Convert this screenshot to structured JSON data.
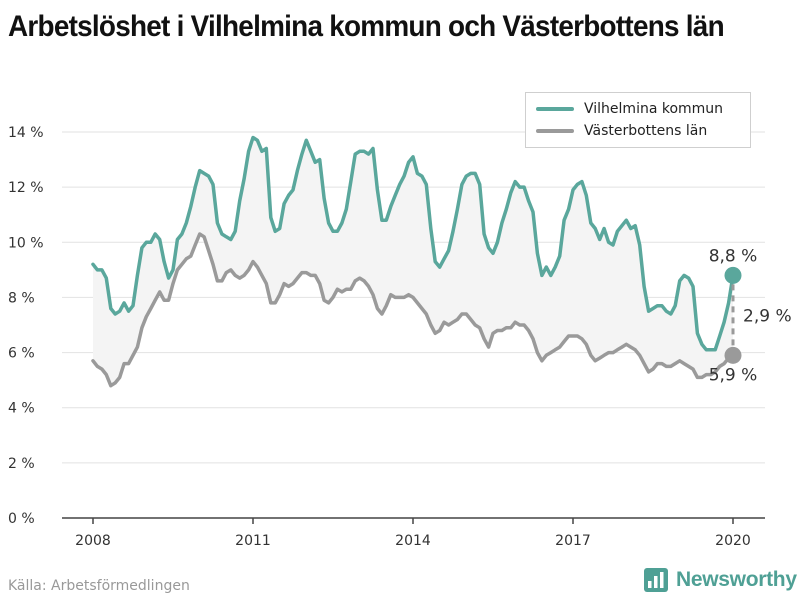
{
  "title": "Arbetslöshet i Vilhelmina kommun och Västerbottens län",
  "source": "Källa: Arbetsförmedlingen",
  "brand": {
    "name": "Newsworthy",
    "icon": "bar-chart-logo-icon",
    "color": "#4fa095"
  },
  "legend": {
    "placement": "top-right",
    "items": [
      {
        "label": "Vilhelmina kommun",
        "color": "#5aa79c"
      },
      {
        "label": "Västerbottens län",
        "color": "#9a9a9a"
      }
    ]
  },
  "annotations": {
    "end_value_vilhelmina": "8,8 %",
    "end_value_vasterbotten": "5,9 %",
    "difference": "2,9 %"
  },
  "chart_data": {
    "type": "line",
    "title": "Arbetslöshet i Vilhelmina kommun och Västerbottens län",
    "xlabel": "",
    "ylabel": "",
    "xlim": [
      2008,
      2020
    ],
    "ylim": [
      0,
      14
    ],
    "grid": true,
    "x_ticks": [
      2008,
      2011,
      2014,
      2017,
      2020
    ],
    "x_tick_labels": [
      "2008",
      "2011",
      "2014",
      "2017",
      "2020"
    ],
    "y_ticks": [
      0,
      2,
      4,
      6,
      8,
      10,
      12,
      14
    ],
    "y_tick_labels": [
      "0 %",
      "2 %",
      "4 %",
      "6 %",
      "8 %",
      "10 %",
      "12 %",
      "14 %"
    ],
    "series": [
      {
        "name": "Vilhelmina kommun",
        "color": "#5aa79c",
        "x": [
          2008,
          2008.083,
          2008.167,
          2008.25,
          2008.333,
          2008.417,
          2008.5,
          2008.583,
          2008.667,
          2008.75,
          2008.833,
          2008.917,
          2009,
          2009.083,
          2009.167,
          2009.25,
          2009.333,
          2009.417,
          2009.5,
          2009.583,
          2009.667,
          2009.75,
          2009.833,
          2009.917,
          2010,
          2010.083,
          2010.167,
          2010.25,
          2010.333,
          2010.417,
          2010.5,
          2010.583,
          2010.667,
          2010.75,
          2010.833,
          2010.917,
          2011,
          2011.083,
          2011.167,
          2011.25,
          2011.333,
          2011.417,
          2011.5,
          2011.583,
          2011.667,
          2011.75,
          2011.833,
          2011.917,
          2012,
          2012.083,
          2012.167,
          2012.25,
          2012.333,
          2012.417,
          2012.5,
          2012.583,
          2012.667,
          2012.75,
          2012.833,
          2012.917,
          2013,
          2013.083,
          2013.167,
          2013.25,
          2013.333,
          2013.417,
          2013.5,
          2013.583,
          2013.667,
          2013.75,
          2013.833,
          2013.917,
          2014,
          2014.083,
          2014.167,
          2014.25,
          2014.333,
          2014.417,
          2014.5,
          2014.583,
          2014.667,
          2014.75,
          2014.833,
          2014.917,
          2015,
          2015.083,
          2015.167,
          2015.25,
          2015.333,
          2015.417,
          2015.5,
          2015.583,
          2015.667,
          2015.75,
          2015.833,
          2015.917,
          2016,
          2016.083,
          2016.167,
          2016.25,
          2016.333,
          2016.417,
          2016.5,
          2016.583,
          2016.667,
          2016.75,
          2016.833,
          2016.917,
          2017,
          2017.083,
          2017.167,
          2017.25,
          2017.333,
          2017.417,
          2017.5,
          2017.583,
          2017.667,
          2017.75,
          2017.833,
          2017.917,
          2018,
          2018.083,
          2018.167,
          2018.25,
          2018.333,
          2018.417,
          2018.5,
          2018.583,
          2018.667,
          2018.75,
          2018.833,
          2018.917,
          2019,
          2019.083,
          2019.167,
          2019.25,
          2019.333,
          2019.417,
          2019.5,
          2019.583,
          2019.667,
          2019.75,
          2019.833,
          2019.917,
          2020
        ],
        "values": [
          9.2,
          9.0,
          9.0,
          8.7,
          7.6,
          7.4,
          7.5,
          7.8,
          7.5,
          7.7,
          8.8,
          9.8,
          10.0,
          10.0,
          10.3,
          10.1,
          9.3,
          8.7,
          9.0,
          10.1,
          10.3,
          10.7,
          11.3,
          12.0,
          12.6,
          12.5,
          12.4,
          12.1,
          10.7,
          10.3,
          10.2,
          10.1,
          10.4,
          11.5,
          12.3,
          13.3,
          13.8,
          13.7,
          13.3,
          13.4,
          10.9,
          10.4,
          10.5,
          11.4,
          11.7,
          11.9,
          12.6,
          13.2,
          13.7,
          13.3,
          12.9,
          13.0,
          11.6,
          10.7,
          10.4,
          10.4,
          10.7,
          11.2,
          12.2,
          13.2,
          13.3,
          13.3,
          13.2,
          13.4,
          11.9,
          10.8,
          10.8,
          11.3,
          11.7,
          12.1,
          12.4,
          12.9,
          13.1,
          12.5,
          12.4,
          12.1,
          10.5,
          9.3,
          9.1,
          9.4,
          9.7,
          10.4,
          11.2,
          12.1,
          12.4,
          12.5,
          12.5,
          12.1,
          10.3,
          9.8,
          9.6,
          10.0,
          10.7,
          11.2,
          11.8,
          12.2,
          12.0,
          12.0,
          11.5,
          11.1,
          9.6,
          8.8,
          9.1,
          8.8,
          9.1,
          9.5,
          10.8,
          11.2,
          11.9,
          12.1,
          12.2,
          11.7,
          10.7,
          10.5,
          10.1,
          10.5,
          10.0,
          9.9,
          10.4,
          10.6,
          10.8,
          10.5,
          10.6,
          9.9,
          8.4,
          7.5,
          7.6,
          7.7,
          7.7,
          7.5,
          7.4,
          7.7,
          8.6,
          8.8,
          8.7,
          8.4,
          6.7,
          6.3,
          6.1,
          6.1,
          6.1,
          6.6,
          7.1,
          7.8,
          8.8
        ]
      },
      {
        "name": "Västerbottens län",
        "color": "#9a9a9a",
        "x": [
          2008,
          2008.083,
          2008.167,
          2008.25,
          2008.333,
          2008.417,
          2008.5,
          2008.583,
          2008.667,
          2008.75,
          2008.833,
          2008.917,
          2009,
          2009.083,
          2009.167,
          2009.25,
          2009.333,
          2009.417,
          2009.5,
          2009.583,
          2009.667,
          2009.75,
          2009.833,
          2009.917,
          2010,
          2010.083,
          2010.167,
          2010.25,
          2010.333,
          2010.417,
          2010.5,
          2010.583,
          2010.667,
          2010.75,
          2010.833,
          2010.917,
          2011,
          2011.083,
          2011.167,
          2011.25,
          2011.333,
          2011.417,
          2011.5,
          2011.583,
          2011.667,
          2011.75,
          2011.833,
          2011.917,
          2012,
          2012.083,
          2012.167,
          2012.25,
          2012.333,
          2012.417,
          2012.5,
          2012.583,
          2012.667,
          2012.75,
          2012.833,
          2012.917,
          2013,
          2013.083,
          2013.167,
          2013.25,
          2013.333,
          2013.417,
          2013.5,
          2013.583,
          2013.667,
          2013.75,
          2013.833,
          2013.917,
          2014,
          2014.083,
          2014.167,
          2014.25,
          2014.333,
          2014.417,
          2014.5,
          2014.583,
          2014.667,
          2014.75,
          2014.833,
          2014.917,
          2015,
          2015.083,
          2015.167,
          2015.25,
          2015.333,
          2015.417,
          2015.5,
          2015.583,
          2015.667,
          2015.75,
          2015.833,
          2015.917,
          2016,
          2016.083,
          2016.167,
          2016.25,
          2016.333,
          2016.417,
          2016.5,
          2016.583,
          2016.667,
          2016.75,
          2016.833,
          2016.917,
          2017,
          2017.083,
          2017.167,
          2017.25,
          2017.333,
          2017.417,
          2017.5,
          2017.583,
          2017.667,
          2017.75,
          2017.833,
          2017.917,
          2018,
          2018.083,
          2018.167,
          2018.25,
          2018.333,
          2018.417,
          2018.5,
          2018.583,
          2018.667,
          2018.75,
          2018.833,
          2018.917,
          2019,
          2019.083,
          2019.167,
          2019.25,
          2019.333,
          2019.417,
          2019.5,
          2019.583,
          2019.667,
          2019.75,
          2019.833,
          2019.917,
          2020
        ],
        "values": [
          5.7,
          5.5,
          5.4,
          5.2,
          4.8,
          4.9,
          5.1,
          5.6,
          5.6,
          5.9,
          6.2,
          6.9,
          7.3,
          7.6,
          7.9,
          8.2,
          7.9,
          7.9,
          8.5,
          9.0,
          9.2,
          9.4,
          9.5,
          9.9,
          10.3,
          10.2,
          9.7,
          9.2,
          8.6,
          8.6,
          8.9,
          9.0,
          8.8,
          8.7,
          8.8,
          9.0,
          9.3,
          9.1,
          8.8,
          8.5,
          7.8,
          7.8,
          8.1,
          8.5,
          8.4,
          8.5,
          8.7,
          8.9,
          8.9,
          8.8,
          8.8,
          8.5,
          7.9,
          7.8,
          8.0,
          8.3,
          8.2,
          8.3,
          8.3,
          8.6,
          8.7,
          8.6,
          8.4,
          8.1,
          7.6,
          7.4,
          7.7,
          8.1,
          8.0,
          8.0,
          8.0,
          8.1,
          8.0,
          7.8,
          7.6,
          7.4,
          7.0,
          6.7,
          6.8,
          7.1,
          7.0,
          7.1,
          7.2,
          7.4,
          7.4,
          7.2,
          7.0,
          6.9,
          6.5,
          6.2,
          6.7,
          6.8,
          6.8,
          6.9,
          6.9,
          7.1,
          7.0,
          7.0,
          6.8,
          6.5,
          6.0,
          5.7,
          5.9,
          6.0,
          6.1,
          6.2,
          6.4,
          6.6,
          6.6,
          6.6,
          6.5,
          6.3,
          5.9,
          5.7,
          5.8,
          5.9,
          6.0,
          6.0,
          6.1,
          6.2,
          6.3,
          6.2,
          6.1,
          5.9,
          5.6,
          5.3,
          5.4,
          5.6,
          5.6,
          5.5,
          5.5,
          5.6,
          5.7,
          5.6,
          5.5,
          5.4,
          5.1,
          5.1,
          5.2,
          5.2,
          5.3,
          5.5,
          5.6,
          5.8,
          5.9
        ]
      }
    ]
  }
}
